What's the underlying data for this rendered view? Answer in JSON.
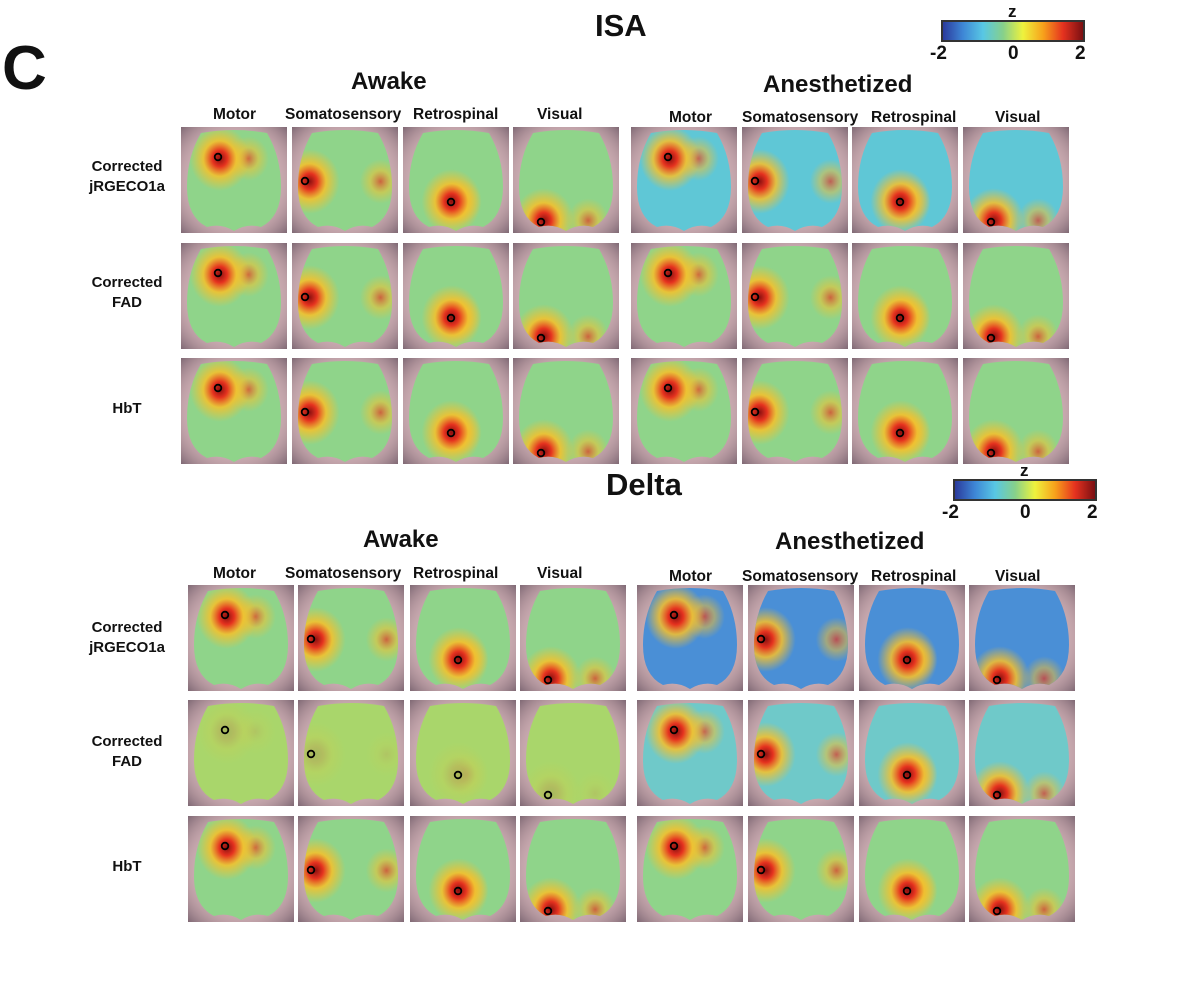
{
  "panel_letter": "C",
  "colorbar": {
    "label": "z",
    "ticks": [
      "-2",
      "0",
      "2"
    ],
    "min": -2,
    "max": 2,
    "colors": [
      "#2b3a9c",
      "#3e87d6",
      "#58c7e4",
      "#86d08b",
      "#eef23d",
      "#f7a21b",
      "#e5321f",
      "#7a0f12"
    ]
  },
  "sections": [
    {
      "title": "ISA",
      "conditions": [
        {
          "title": "Awake",
          "columns": [
            "Motor",
            "Somatosensory",
            "Retrospinal",
            "Visual"
          ]
        },
        {
          "title": "Anesthetized",
          "columns": [
            "Motor",
            "Somatosensory",
            "Retrospinal",
            "Visual"
          ]
        }
      ],
      "rows": [
        {
          "label": [
            "Corrected",
            "jRGECO1a"
          ]
        },
        {
          "label": [
            "Corrected",
            "FAD"
          ]
        },
        {
          "label": [
            "HbT"
          ]
        }
      ]
    },
    {
      "title": "Delta",
      "conditions": [
        {
          "title": "Awake",
          "columns": [
            "Motor",
            "Somatosensory",
            "Retrospinal",
            "Visual"
          ]
        },
        {
          "title": "Anesthetized",
          "columns": [
            "Motor",
            "Somatosensory",
            "Retrospinal",
            "Visual"
          ]
        }
      ],
      "rows": [
        {
          "label": [
            "Corrected",
            "jRGECO1a"
          ]
        },
        {
          "label": [
            "Corrected",
            "FAD"
          ]
        },
        {
          "label": [
            "HbT"
          ]
        }
      ]
    }
  ]
}
